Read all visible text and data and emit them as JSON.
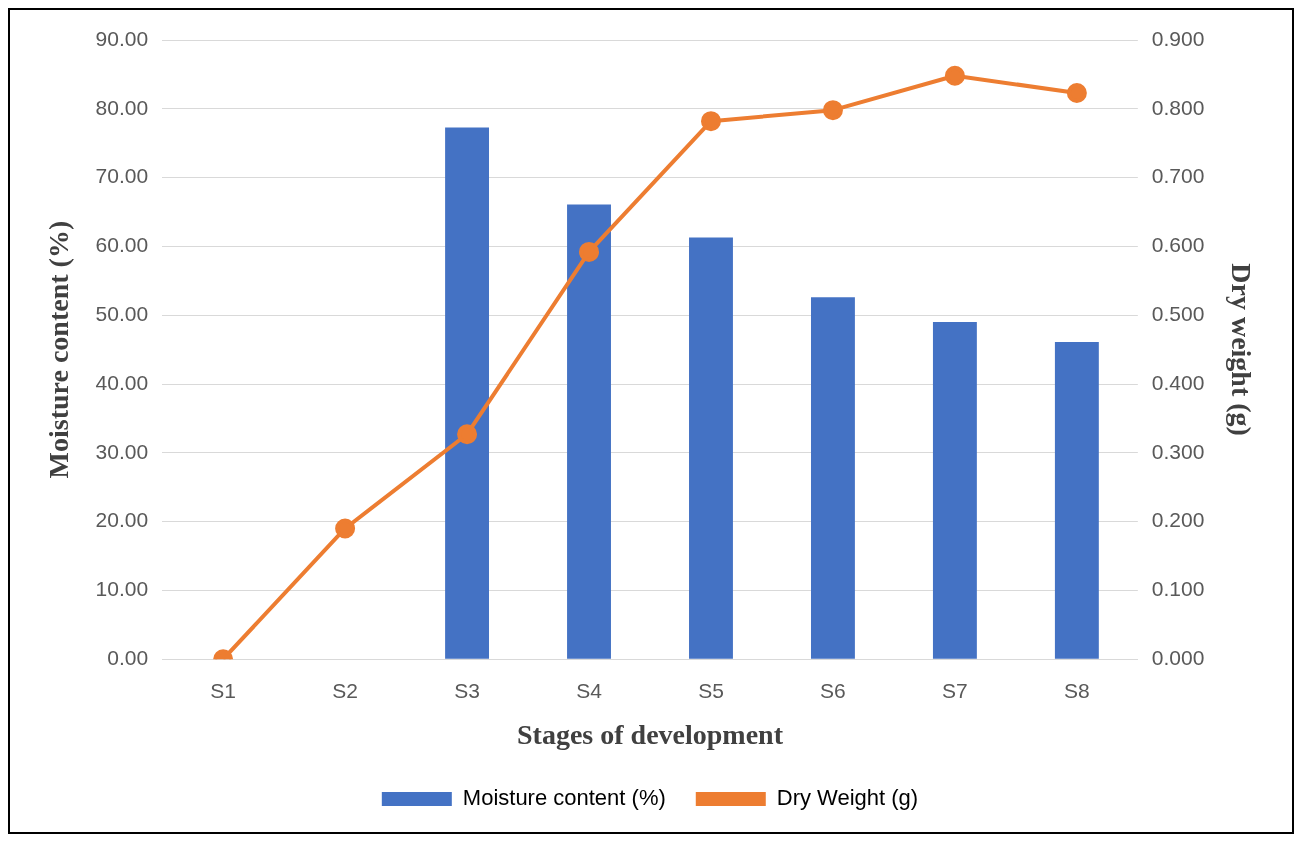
{
  "chart_data": {
    "type": "bar",
    "xlabel": "Stages of development",
    "ylabel": "Moisture content (%)",
    "y2label": "Dry weight (g)",
    "categories": [
      "S1",
      "S2",
      "S3",
      "S4",
      "S5",
      "S6",
      "S7",
      "S8"
    ],
    "series": [
      {
        "name": "Moisture content (%)",
        "color": "#4472c4",
        "values": [
          null,
          null,
          77.3,
          66.1,
          61.3,
          52.6,
          49.0,
          46.1
        ]
      },
      {
        "name": "Dry Weight (g)",
        "type": "line",
        "axis": "y2",
        "color": "#ed7d31",
        "marker": "circle",
        "values": [
          0,
          0.19,
          0.327,
          0.592,
          0.782,
          0.798,
          0.848,
          0.823
        ]
      }
    ],
    "ylim": [
      0,
      90
    ],
    "yticks": [
      {
        "value": 0,
        "label": "0.00"
      },
      {
        "value": 10,
        "label": "10.00"
      },
      {
        "value": 20,
        "label": "20.00"
      },
      {
        "value": 30,
        "label": "30.00"
      },
      {
        "value": 40,
        "label": "40.00"
      },
      {
        "value": 50,
        "label": "50.00"
      },
      {
        "value": 60,
        "label": "60.00"
      },
      {
        "value": 70,
        "label": "70.00"
      },
      {
        "value": 80,
        "label": "80.00"
      },
      {
        "value": 90,
        "label": "90.00"
      }
    ],
    "y2lim": [
      0,
      0.9
    ],
    "y2ticks": [
      {
        "value": 0,
        "label": "0.000"
      },
      {
        "value": 0.1,
        "label": "0.100"
      },
      {
        "value": 0.2,
        "label": "0.200"
      },
      {
        "value": 0.3,
        "label": "0.300"
      },
      {
        "value": 0.4,
        "label": "0.400"
      },
      {
        "value": 0.5,
        "label": "0.500"
      },
      {
        "value": 0.6,
        "label": "0.600"
      },
      {
        "value": 0.7,
        "label": "0.700"
      },
      {
        "value": 0.8,
        "label": "0.800"
      },
      {
        "value": 0.9,
        "label": "0.900"
      }
    ],
    "grid": "y",
    "legend": "bottom"
  }
}
